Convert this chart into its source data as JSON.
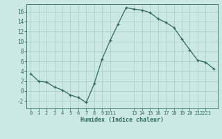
{
  "x": [
    0,
    1,
    2,
    3,
    4,
    5,
    6,
    7,
    8,
    9,
    10,
    11,
    12,
    13,
    14,
    15,
    16,
    17,
    18,
    19,
    20,
    21,
    22,
    23
  ],
  "y": [
    3.5,
    2.0,
    1.8,
    0.8,
    0.2,
    -0.8,
    -1.3,
    -2.3,
    1.5,
    6.5,
    10.2,
    13.5,
    16.8,
    16.5,
    16.3,
    15.8,
    14.6,
    13.8,
    12.8,
    10.5,
    8.3,
    6.2,
    5.8,
    4.5
  ],
  "line_color": "#2e6b5e",
  "bg_color": "#cce8e4",
  "grid_color": "#aecfcb",
  "tick_color": "#2e6b5e",
  "xlabel": "Humidex (Indice chaleur)",
  "ylim": [
    -3.5,
    17.5
  ],
  "yticks": [
    -2,
    0,
    2,
    4,
    6,
    8,
    10,
    12,
    14,
    16
  ],
  "shown_xticks": [
    0,
    1,
    2,
    3,
    4,
    5,
    6,
    7,
    8,
    9,
    10,
    13,
    14,
    15,
    16,
    17,
    18,
    19,
    20,
    21,
    22
  ],
  "shown_labels": [
    "0",
    "1",
    "2",
    "3",
    "4",
    "5",
    "6",
    "7",
    "8",
    "9",
    "1011",
    "13",
    "14",
    "15",
    "16",
    "17",
    "18",
    "19",
    "20",
    "21",
    "2223"
  ]
}
